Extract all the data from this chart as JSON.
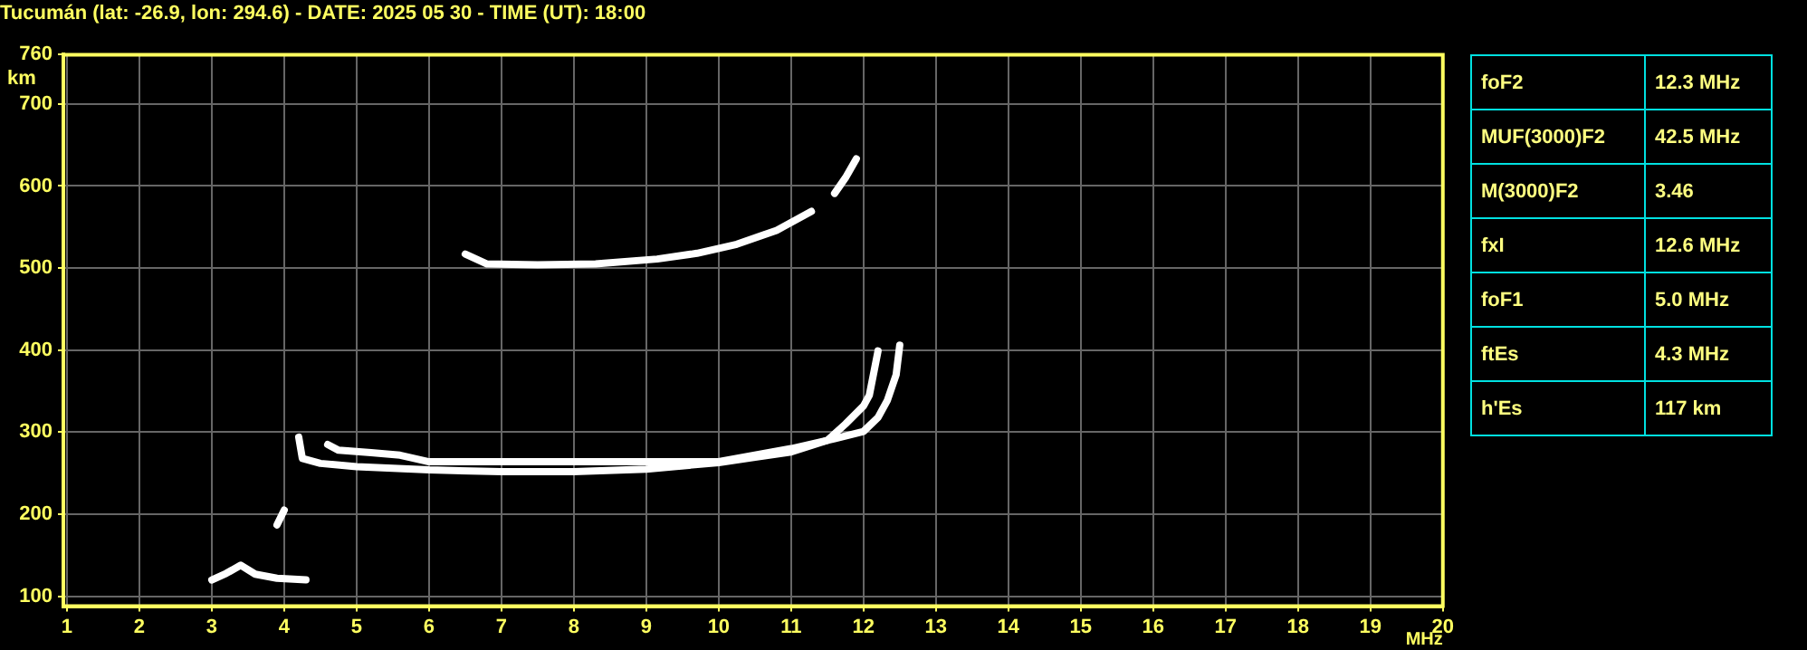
{
  "chart_data": [
    {
      "type": "line",
      "title": "Tucumán (lat: -26.9, lon: 294.6) - DATE: 2025 05 30 - TIME (UT): 18:00",
      "xlabel": "MHz",
      "ylabel": "km",
      "xlim": [
        0.95,
        20
      ],
      "xticks": [
        1,
        2,
        3,
        4,
        5,
        6,
        7,
        8,
        9,
        10,
        11,
        12,
        13,
        14,
        15,
        16,
        17,
        18,
        19,
        20
      ],
      "ylim": [
        88,
        760
      ],
      "yticks": [
        100,
        200,
        300,
        400,
        500,
        600,
        700,
        760
      ],
      "grid": true,
      "legend": false,
      "marker": "none",
      "line_style": "solid",
      "series": [
        {
          "type": "line",
          "color": "#ffffff",
          "x": [
            4.2,
            4.25,
            4.5,
            5,
            5.5,
            6,
            7,
            8,
            9,
            10,
            11,
            11.5,
            11.75,
            12,
            12.08,
            12.2
          ],
          "values": [
            294,
            268,
            262,
            258,
            256,
            254,
            252,
            252,
            255,
            263,
            276,
            290,
            310,
            332,
            345,
            399
          ]
        },
        {
          "type": "line",
          "color": "#ffffff",
          "x": [
            4.6,
            4.75,
            5.2,
            5.6,
            6,
            10,
            11,
            11.6,
            12,
            12.2,
            12.33,
            12.45,
            12.5
          ],
          "values": [
            285,
            278,
            275,
            272,
            264,
            264,
            280,
            292,
            301,
            318,
            339,
            370,
            406
          ]
        },
        {
          "type": "line",
          "color": "#ffffff",
          "x": [
            6.5,
            6.8,
            7.5,
            8.3,
            9.15,
            9.7,
            10.25,
            10.8,
            11.28
          ],
          "values": [
            517,
            505,
            504,
            505,
            511,
            518,
            529,
            546,
            569
          ]
        },
        {
          "type": "line",
          "color": "#ffffff",
          "x": [
            3.9,
            4.0
          ],
          "values": [
            187,
            205
          ]
        },
        {
          "type": "line",
          "color": "#ffffff",
          "x": [
            3.0,
            3.2,
            3.4,
            3.6,
            3.9,
            4.3
          ],
          "values": [
            120,
            128,
            138,
            127,
            122,
            120
          ]
        },
        {
          "type": "line",
          "color": "#ffffff",
          "x": [
            11.6,
            11.75,
            11.9
          ],
          "values": [
            591,
            610,
            633
          ]
        }
      ]
    },
    {
      "type": "other",
      "annotations": [
        "foF2",
        "12.3 MHz",
        "MUF(3000)F2",
        "42.5 MHz",
        "M(3000)F2",
        "3.46",
        "fxI",
        "12.6 MHz",
        "foF1",
        "5.0 MHz",
        "ftEs",
        "4.3 MHz",
        "h'Es",
        "117 km"
      ]
    }
  ]
}
